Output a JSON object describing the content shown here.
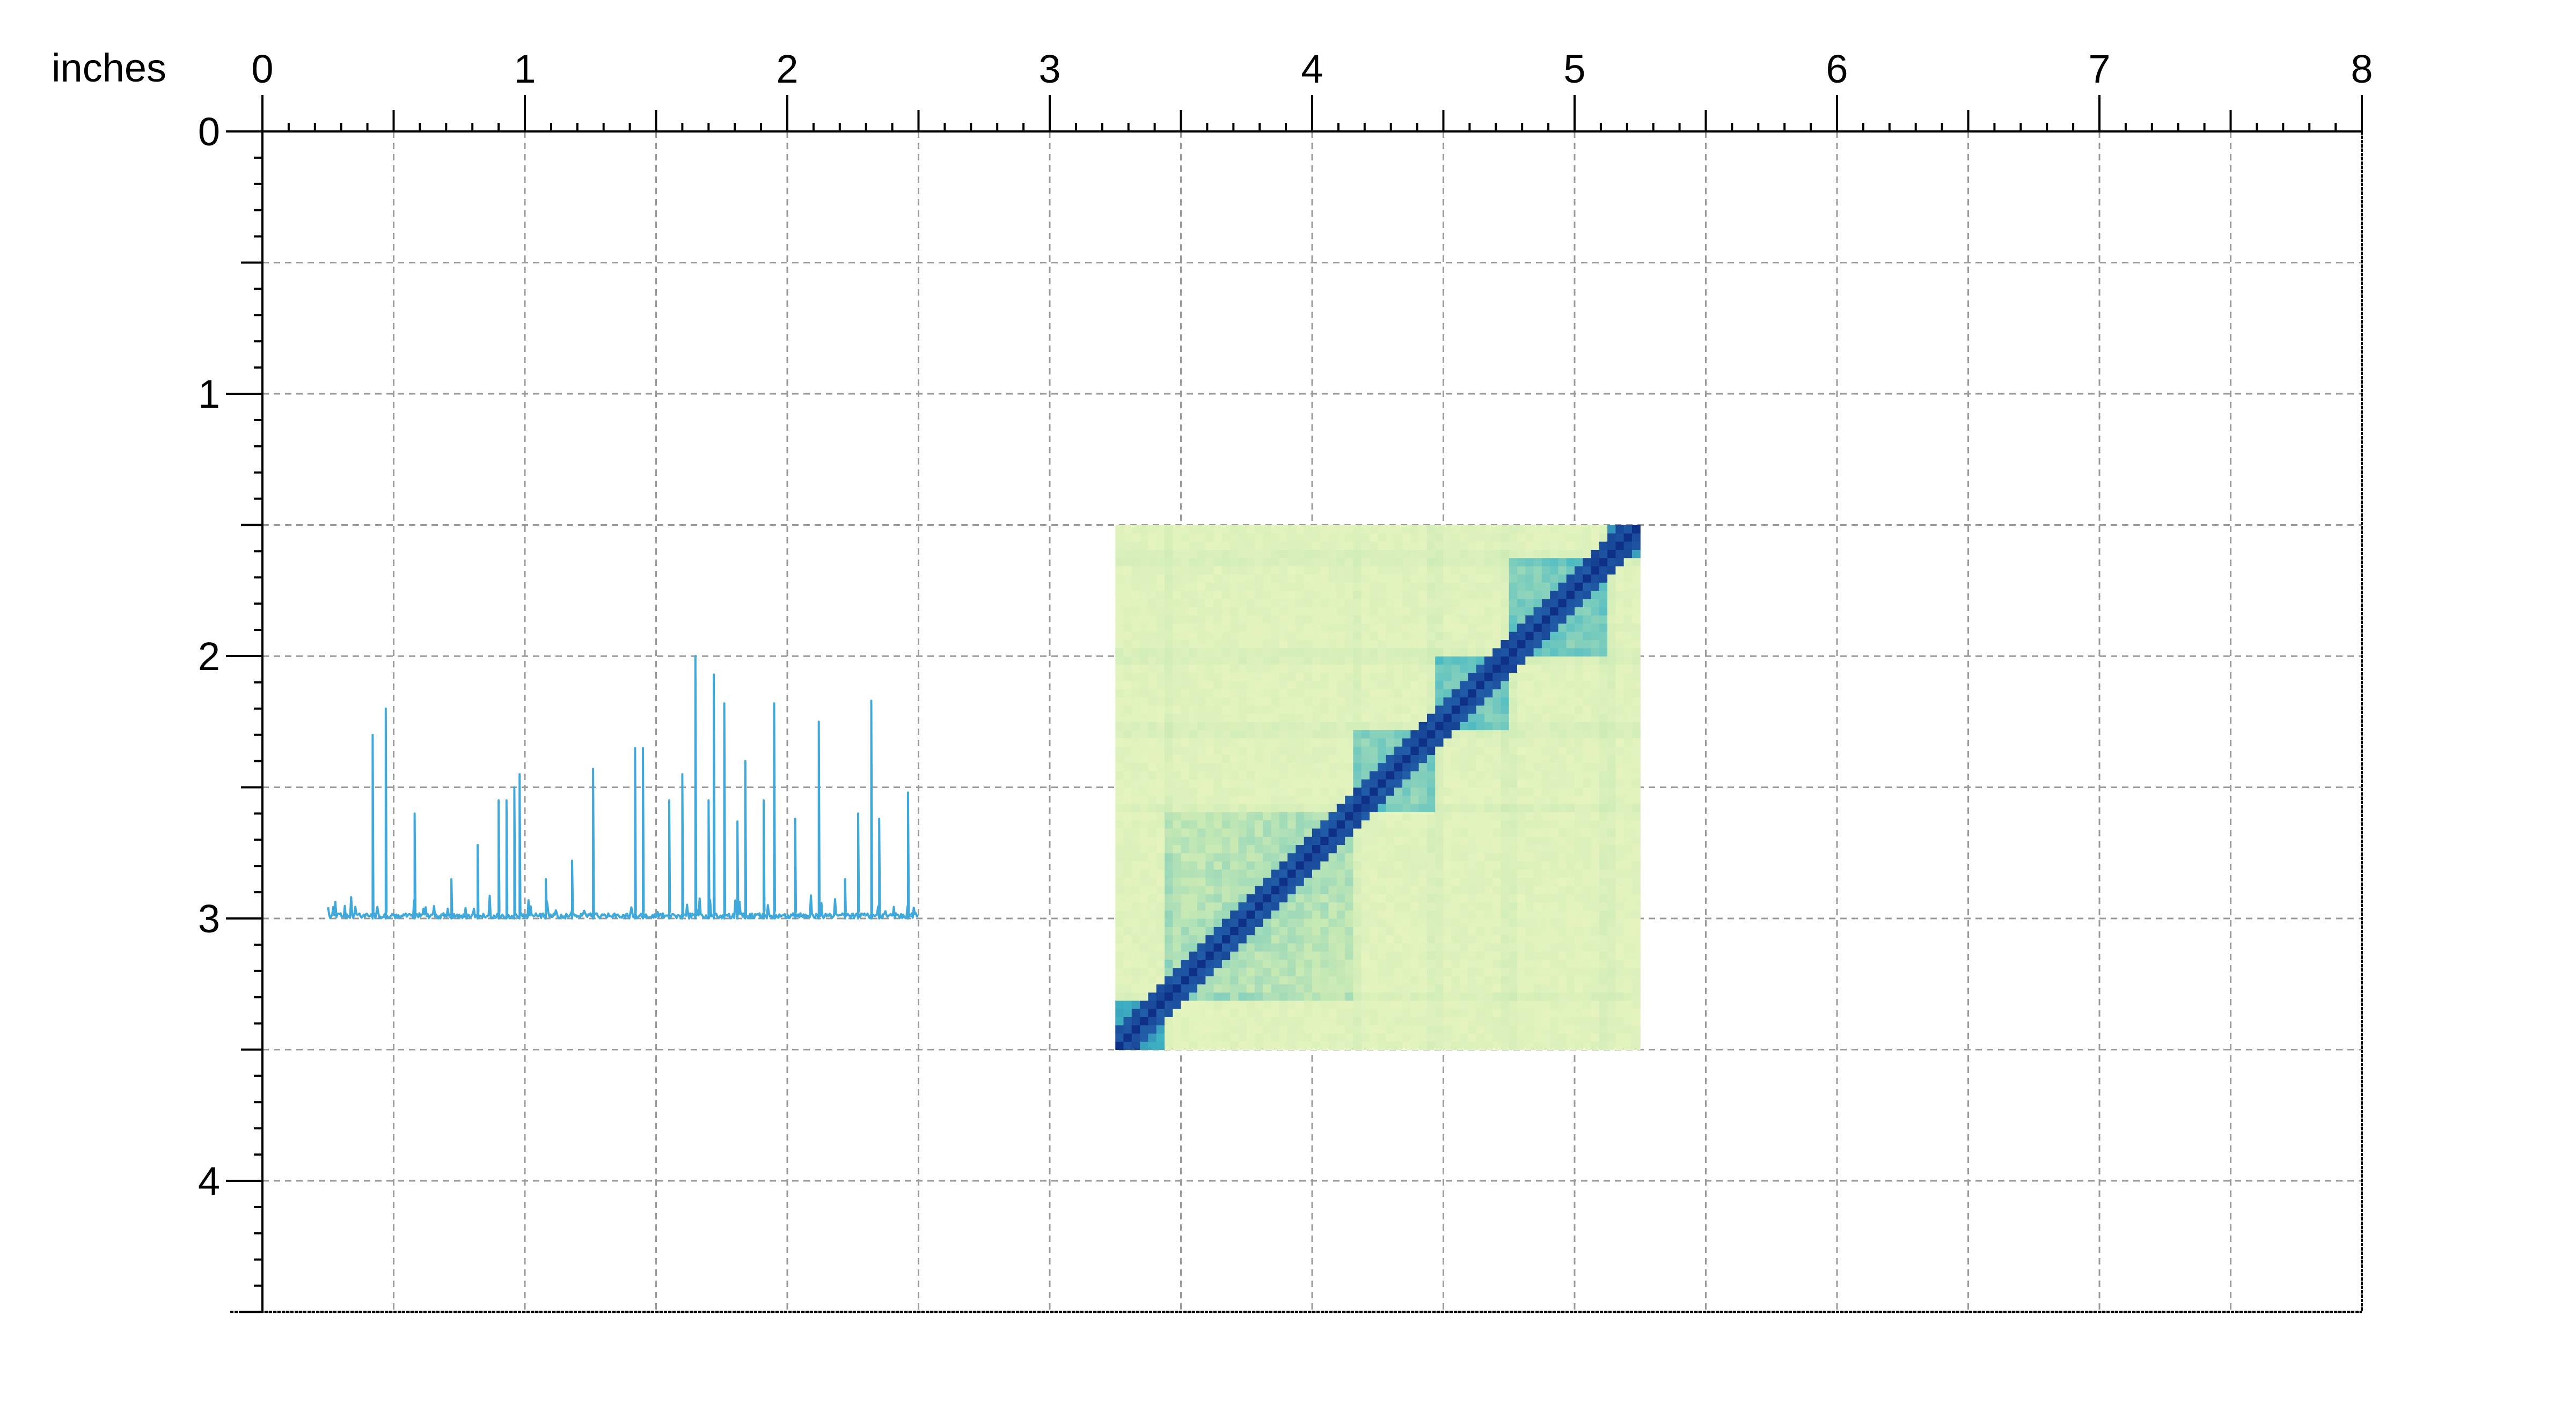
{
  "canvas": {
    "unit": "inches",
    "x_ticks": [
      "0",
      "1",
      "2",
      "3",
      "4",
      "5",
      "6",
      "7",
      "8"
    ],
    "y_ticks": [
      "0",
      "1",
      "2",
      "3",
      "4"
    ],
    "x_range_in": [
      0,
      8
    ],
    "y_range_in": [
      0,
      4.5
    ],
    "minor_ticks_per_inch": 10,
    "grid": "dashed, every 0.5 inch",
    "axis_color": "#000000",
    "grid_color": "#9a9a9a"
  },
  "signal_track": {
    "color": "#3fa9dc",
    "x_range_in": [
      0.25,
      2.5
    ],
    "baseline_in": 3.0,
    "peaks": [
      {
        "x": 0.42,
        "y": 2.3
      },
      {
        "x": 0.47,
        "y": 2.2
      },
      {
        "x": 0.58,
        "y": 2.6
      },
      {
        "x": 0.72,
        "y": 2.85
      },
      {
        "x": 0.82,
        "y": 2.72
      },
      {
        "x": 0.9,
        "y": 2.55
      },
      {
        "x": 0.93,
        "y": 2.55
      },
      {
        "x": 0.96,
        "y": 2.5
      },
      {
        "x": 0.98,
        "y": 2.45
      },
      {
        "x": 1.08,
        "y": 2.85
      },
      {
        "x": 1.18,
        "y": 2.78
      },
      {
        "x": 1.26,
        "y": 2.43
      },
      {
        "x": 1.42,
        "y": 2.35
      },
      {
        "x": 1.45,
        "y": 2.35
      },
      {
        "x": 1.55,
        "y": 2.55
      },
      {
        "x": 1.6,
        "y": 2.45
      },
      {
        "x": 1.65,
        "y": 2.0
      },
      {
        "x": 1.7,
        "y": 2.55
      },
      {
        "x": 1.72,
        "y": 2.07
      },
      {
        "x": 1.76,
        "y": 2.18
      },
      {
        "x": 1.81,
        "y": 2.63
      },
      {
        "x": 1.84,
        "y": 2.4
      },
      {
        "x": 1.91,
        "y": 2.55
      },
      {
        "x": 1.95,
        "y": 2.18
      },
      {
        "x": 2.03,
        "y": 2.62
      },
      {
        "x": 2.12,
        "y": 2.25
      },
      {
        "x": 2.22,
        "y": 2.85
      },
      {
        "x": 2.27,
        "y": 2.6
      },
      {
        "x": 2.32,
        "y": 2.17
      },
      {
        "x": 2.35,
        "y": 2.62
      },
      {
        "x": 2.46,
        "y": 2.52
      }
    ]
  },
  "heatmap": {
    "x_range_in": [
      3.25,
      5.25
    ],
    "y_range_in": [
      1.5,
      3.5
    ],
    "colormap": [
      "#f4f9c4",
      "#c7e9b4",
      "#41b6c4",
      "#225ea8",
      "#0c2c84"
    ],
    "domain_boundaries_in": [
      3.45,
      4.17,
      4.47,
      4.75,
      5.12
    ],
    "domains_in": [
      {
        "from": 3.25,
        "to": 3.45,
        "level": 0.9
      },
      {
        "from": 3.45,
        "to": 4.17,
        "level": 0.3
      },
      {
        "from": 4.17,
        "to": 4.47,
        "level": 0.5
      },
      {
        "from": 4.47,
        "to": 4.75,
        "level": 0.55
      },
      {
        "from": 4.75,
        "to": 5.12,
        "level": 0.55
      },
      {
        "from": 5.12,
        "to": 5.25,
        "level": 0.95
      }
    ]
  }
}
